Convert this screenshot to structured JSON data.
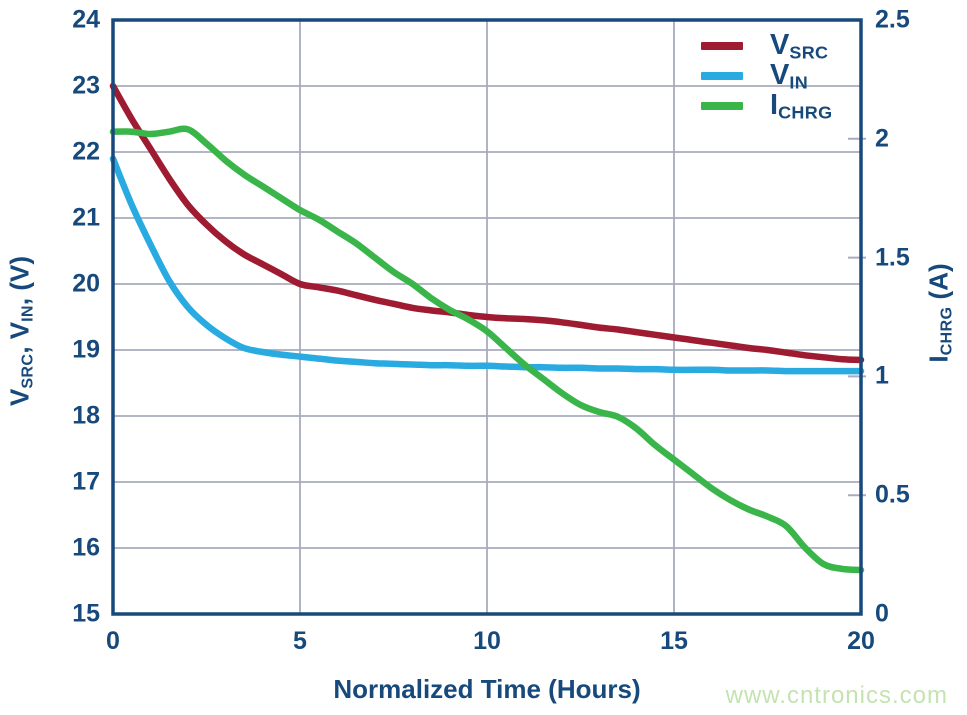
{
  "colors": {
    "navy": "#17497C",
    "grid": "#A8ABBD",
    "background": "#FFFFFF",
    "v_src_line": "#9E1B32",
    "v_in_line": "#29ABE2",
    "i_chrg_line": "#3AB54A",
    "watermark_green": "#C4E3B0"
  },
  "watermark": {
    "text": "www.cntronics.com"
  },
  "axes": {
    "left_title": {
      "main1": "V",
      "sub1": "SRC",
      "sep": ", ",
      "main2": "V",
      "sub2": "IN",
      "unit": ", (V)"
    },
    "right_title": {
      "main": "I",
      "sub": "CHRG",
      "unit": " (A)"
    }
  },
  "legend": {
    "position": "upper-right",
    "items": [
      {
        "main": "V",
        "sub": "SRC"
      },
      {
        "main": "V",
        "sub": "IN"
      },
      {
        "main": "I",
        "sub": "CHRG"
      }
    ]
  },
  "chart_data": {
    "type": "line",
    "title": "",
    "xlabel": "Normalized Time (Hours)",
    "ylabel_left": "V_SRC, V_IN, (V)",
    "ylabel_right": "I_CHRG (A)",
    "grid": "on",
    "xlim": [
      0,
      20
    ],
    "ylim_left": [
      15,
      24
    ],
    "ylim_right": [
      0,
      2.5
    ],
    "x_ticks": [
      0,
      5,
      10,
      15,
      20
    ],
    "left_ticks": [
      15,
      16,
      17,
      18,
      19,
      20,
      21,
      22,
      23,
      24
    ],
    "right_ticks": [
      0,
      0.5,
      1,
      1.5,
      2,
      2.5
    ],
    "x": [
      0,
      0.5,
      1,
      1.5,
      2,
      2.5,
      3,
      3.5,
      4,
      4.5,
      5,
      5.5,
      6,
      6.5,
      7,
      7.5,
      8,
      8.5,
      9,
      9.5,
      10,
      10.5,
      11,
      11.5,
      12,
      12.5,
      13,
      13.5,
      14,
      14.5,
      15,
      15.5,
      16,
      16.5,
      17,
      17.5,
      18,
      18.5,
      19,
      19.5,
      20
    ],
    "series": [
      {
        "name": "V_SRC",
        "axis": "left",
        "color": "#9E1B32",
        "unit": "V",
        "values": [
          23.0,
          22.5,
          22.05,
          21.6,
          21.2,
          20.9,
          20.65,
          20.45,
          20.3,
          20.15,
          20.0,
          19.95,
          19.9,
          19.83,
          19.76,
          19.7,
          19.64,
          19.6,
          19.57,
          19.53,
          19.5,
          19.48,
          19.47,
          19.45,
          19.42,
          19.38,
          19.34,
          19.31,
          19.27,
          19.23,
          19.19,
          19.15,
          19.11,
          19.07,
          19.03,
          19.0,
          18.96,
          18.92,
          18.89,
          18.86,
          18.85
        ]
      },
      {
        "name": "V_IN",
        "axis": "left",
        "color": "#29ABE2",
        "unit": "V",
        "values": [
          21.9,
          21.2,
          20.6,
          20.05,
          19.65,
          19.38,
          19.18,
          19.03,
          18.97,
          18.93,
          18.9,
          18.87,
          18.84,
          18.82,
          18.8,
          18.79,
          18.78,
          18.77,
          18.77,
          18.76,
          18.76,
          18.75,
          18.74,
          18.74,
          18.73,
          18.73,
          18.72,
          18.72,
          18.71,
          18.71,
          18.7,
          18.7,
          18.7,
          18.69,
          18.69,
          18.69,
          18.68,
          18.68,
          18.68,
          18.68,
          18.68
        ]
      },
      {
        "name": "I_CHRG",
        "axis": "right",
        "color": "#3AB54A",
        "unit": "A",
        "values": [
          2.03,
          2.03,
          2.02,
          2.03,
          2.04,
          1.98,
          1.91,
          1.85,
          1.8,
          1.75,
          1.7,
          1.66,
          1.61,
          1.56,
          1.5,
          1.44,
          1.39,
          1.33,
          1.28,
          1.24,
          1.19,
          1.12,
          1.05,
          0.99,
          0.93,
          0.88,
          0.85,
          0.83,
          0.78,
          0.71,
          0.65,
          0.59,
          0.53,
          0.48,
          0.44,
          0.41,
          0.37,
          0.28,
          0.21,
          0.19,
          0.185
        ]
      }
    ]
  }
}
